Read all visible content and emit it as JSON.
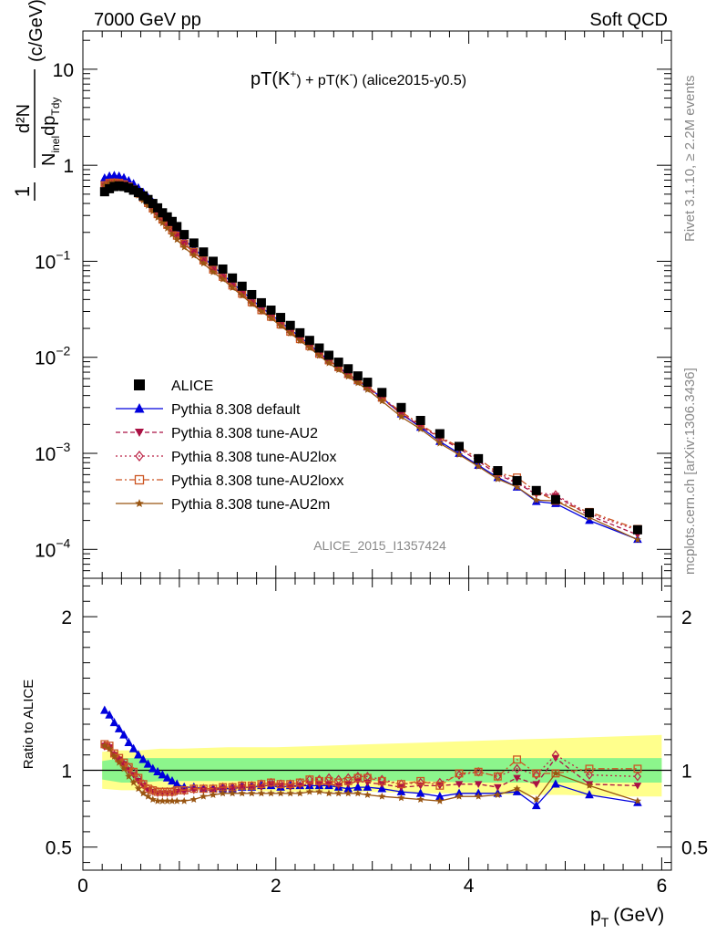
{
  "header": {
    "left": "7000 GeV pp",
    "right": "Soft QCD"
  },
  "side_labels": {
    "rivet": "Rivet 3.1.10, ≥ 2.2M events",
    "mcplots": "mcplots.cern.ch [arXiv:1306.3436]"
  },
  "watermark": "ALICE_2015_I1357424",
  "plot_title": {
    "main": "pT(K",
    "sup1": "+",
    "mid": ") + pT(K",
    "sup2": "-",
    "end": ") (alice2015-y0.5)"
  },
  "chart_data": [
    {
      "type": "scatter",
      "panel": "main",
      "yscale": "log",
      "xlim": [
        0,
        6.1
      ],
      "ylim": [
        5e-05,
        25
      ],
      "ylabel": "1/N_inel d²N/dp_T dy (c/GeV)",
      "ylabel_parts": {
        "one": "1",
        "num": "d²N",
        "den_a": "N",
        "den_sub1": "inel",
        "den_b": "dp",
        "den_sub2": "Tdy",
        "unit": "(c/GeV)"
      },
      "yticks": [
        {
          "v": 10,
          "label": "10"
        },
        {
          "v": 1,
          "label": "1"
        },
        {
          "v": 0.1,
          "label": "10",
          "exp": "−1"
        },
        {
          "v": 0.01,
          "label": "10",
          "exp": "−2"
        },
        {
          "v": 0.001,
          "label": "10",
          "exp": "−3"
        },
        {
          "v": 0.0001,
          "label": "10",
          "exp": "−4"
        }
      ],
      "legend_position": "bottom-left",
      "x": [
        0.225,
        0.275,
        0.325,
        0.375,
        0.425,
        0.475,
        0.525,
        0.575,
        0.625,
        0.675,
        0.725,
        0.775,
        0.825,
        0.875,
        0.925,
        0.975,
        1.05,
        1.15,
        1.25,
        1.35,
        1.45,
        1.55,
        1.65,
        1.75,
        1.85,
        1.95,
        2.05,
        2.15,
        2.25,
        2.35,
        2.45,
        2.55,
        2.65,
        2.75,
        2.85,
        2.95,
        3.1,
        3.3,
        3.5,
        3.7,
        3.9,
        4.1,
        4.3,
        4.5,
        4.7,
        4.9,
        5.25,
        5.75
      ],
      "series": [
        {
          "name": "ALICE",
          "color": "#000000",
          "marker": "square",
          "line": "none",
          "values": [
            0.53,
            0.57,
            0.6,
            0.61,
            0.6,
            0.58,
            0.55,
            0.52,
            0.48,
            0.44,
            0.4,
            0.36,
            0.32,
            0.29,
            0.26,
            0.23,
            0.19,
            0.155,
            0.125,
            0.1,
            0.083,
            0.067,
            0.055,
            0.045,
            0.037,
            0.031,
            0.026,
            0.0215,
            0.018,
            0.015,
            0.0125,
            0.0105,
            0.0089,
            0.0076,
            0.0064,
            0.0055,
            0.0043,
            0.003,
            0.0022,
            0.0016,
            0.00118,
            0.00088,
            0.00066,
            0.00052,
            0.00041,
            0.00033,
            0.00024,
            0.00016
          ]
        },
        {
          "name": "Pythia 8.308 default",
          "color": "#0000dd",
          "marker": "triangle-up",
          "line": "solid",
          "values": [
            0.735,
            0.77,
            0.78,
            0.77,
            0.74,
            0.69,
            0.64,
            0.58,
            0.52,
            0.46,
            0.41,
            0.36,
            0.315,
            0.275,
            0.24,
            0.21,
            0.168,
            0.136,
            0.11,
            0.088,
            0.073,
            0.059,
            0.049,
            0.04,
            0.033,
            0.028,
            0.0233,
            0.0195,
            0.0163,
            0.0136,
            0.0112,
            0.0094,
            0.0079,
            0.0067,
            0.0057,
            0.0049,
            0.0038,
            0.00257,
            0.00187,
            0.00133,
            0.001,
            0.00075,
            0.00056,
            0.000445,
            0.000315,
            0.0003,
            0.0002,
            0.000127
          ]
        },
        {
          "name": "Pythia 8.308 tune-AU2",
          "color": "#aa1144",
          "marker": "triangle-down",
          "line": "dashed",
          "values": [
            0.615,
            0.655,
            0.66,
            0.655,
            0.635,
            0.6,
            0.56,
            0.51,
            0.46,
            0.405,
            0.355,
            0.31,
            0.27,
            0.24,
            0.21,
            0.185,
            0.151,
            0.124,
            0.101,
            0.081,
            0.068,
            0.055,
            0.0455,
            0.037,
            0.0305,
            0.026,
            0.0218,
            0.0183,
            0.0153,
            0.0129,
            0.0107,
            0.0091,
            0.0077,
            0.0066,
            0.0056,
            0.0048,
            0.0037,
            0.0026,
            0.00192,
            0.00145,
            0.00112,
            0.00083,
            0.0006,
            0.00049,
            0.000375,
            0.00036,
            0.000225,
            0.000142
          ]
        },
        {
          "name": "Pythia 8.308 tune-AU2lox",
          "color": "#bb2244",
          "marker": "diamond-open",
          "line": "dotted",
          "values": [
            0.615,
            0.655,
            0.66,
            0.65,
            0.63,
            0.6,
            0.555,
            0.51,
            0.46,
            0.405,
            0.355,
            0.31,
            0.272,
            0.24,
            0.21,
            0.185,
            0.153,
            0.125,
            0.102,
            0.082,
            0.069,
            0.056,
            0.046,
            0.0375,
            0.031,
            0.0265,
            0.022,
            0.0185,
            0.0155,
            0.0131,
            0.0109,
            0.0093,
            0.0079,
            0.0067,
            0.0058,
            0.005,
            0.0038,
            0.0027,
            0.00198,
            0.00148,
            0.00116,
            0.00088,
            0.00063,
            0.0005,
            0.00039,
            0.00037,
            0.000235,
            0.000158
          ]
        },
        {
          "name": "Pythia 8.308 tune-AU2loxx",
          "color": "#cc5522",
          "marker": "square-open",
          "line": "dashdot",
          "values": [
            0.62,
            0.655,
            0.66,
            0.655,
            0.635,
            0.6,
            0.56,
            0.51,
            0.46,
            0.405,
            0.355,
            0.31,
            0.272,
            0.24,
            0.21,
            0.185,
            0.153,
            0.125,
            0.102,
            0.082,
            0.069,
            0.056,
            0.046,
            0.0375,
            0.031,
            0.0265,
            0.022,
            0.0185,
            0.0155,
            0.0131,
            0.0109,
            0.0093,
            0.0079,
            0.0067,
            0.0058,
            0.005,
            0.0038,
            0.0027,
            0.002,
            0.00148,
            0.00117,
            0.00088,
            0.00063,
            0.00056,
            0.0004,
            0.00032,
            0.000245,
            0.000163
          ]
        },
        {
          "name": "Pythia 8.308 tune-AU2m",
          "color": "#995511",
          "marker": "star",
          "line": "solid",
          "values": [
            0.62,
            0.655,
            0.66,
            0.645,
            0.62,
            0.58,
            0.535,
            0.485,
            0.43,
            0.38,
            0.33,
            0.285,
            0.25,
            0.22,
            0.19,
            0.168,
            0.14,
            0.115,
            0.095,
            0.077,
            0.065,
            0.053,
            0.044,
            0.036,
            0.03,
            0.0255,
            0.0212,
            0.0178,
            0.0149,
            0.0125,
            0.0104,
            0.0087,
            0.0074,
            0.0063,
            0.0054,
            0.0046,
            0.0035,
            0.0024,
            0.00179,
            0.00127,
            0.00097,
            0.00073,
            0.00054,
            0.000445,
            0.000325,
            0.00032,
            0.000215,
            0.000126
          ]
        }
      ]
    },
    {
      "type": "scatter",
      "panel": "ratio",
      "yscale": "linear",
      "xlim": [
        0,
        6.1
      ],
      "ylim": [
        0.35,
        2.25
      ],
      "xlabel": "p",
      "xlabel_sub": "T",
      "xlabel_unit": "(GeV)",
      "ylabel": "Ratio to ALICE",
      "xticks": [
        0,
        2,
        4,
        6
      ],
      "yticks": [
        0.5,
        1,
        2
      ],
      "reference_line": 1,
      "bands": {
        "x": [
          0.2,
          0.4,
          0.6,
          0.8,
          1.0,
          1.5,
          2.0,
          2.5,
          3.0,
          3.5,
          4.0,
          4.5,
          5.0,
          5.5,
          6.0
        ],
        "green_lo": [
          0.94,
          0.92,
          0.92,
          0.93,
          0.93,
          0.93,
          0.93,
          0.93,
          0.93,
          0.93,
          0.92,
          0.92,
          0.92,
          0.92,
          0.92
        ],
        "green_hi": [
          1.06,
          1.08,
          1.08,
          1.08,
          1.08,
          1.08,
          1.08,
          1.08,
          1.08,
          1.08,
          1.08,
          1.08,
          1.08,
          1.08,
          1.08
        ],
        "yellow_lo": [
          0.88,
          0.87,
          0.87,
          0.87,
          0.87,
          0.87,
          0.86,
          0.86,
          0.86,
          0.85,
          0.85,
          0.84,
          0.84,
          0.83,
          0.83
        ],
        "yellow_hi": [
          1.12,
          1.13,
          1.13,
          1.14,
          1.14,
          1.15,
          1.15,
          1.16,
          1.17,
          1.18,
          1.19,
          1.2,
          1.21,
          1.22,
          1.23
        ]
      },
      "series": [
        {
          "name": "Pythia 8.308 default",
          "color": "#0000dd",
          "marker": "triangle-up",
          "line": "solid",
          "values": [
            1.39,
            1.36,
            1.31,
            1.27,
            1.23,
            1.18,
            1.14,
            1.1,
            1.07,
            1.04,
            1.01,
            0.99,
            0.97,
            0.95,
            0.93,
            0.91,
            0.89,
            0.89,
            0.88,
            0.88,
            0.88,
            0.88,
            0.89,
            0.89,
            0.9,
            0.9,
            0.89,
            0.9,
            0.9,
            0.9,
            0.9,
            0.9,
            0.89,
            0.88,
            0.89,
            0.89,
            0.88,
            0.86,
            0.85,
            0.83,
            0.85,
            0.85,
            0.85,
            0.86,
            0.77,
            0.91,
            0.84,
            0.79
          ]
        },
        {
          "name": "Pythia 8.308 tune-AU2",
          "color": "#aa1144",
          "marker": "triangle-down",
          "line": "dashed",
          "values": [
            1.16,
            1.15,
            1.1,
            1.07,
            1.04,
            1.0,
            0.97,
            0.93,
            0.9,
            0.87,
            0.86,
            0.85,
            0.85,
            0.85,
            0.85,
            0.86,
            0.86,
            0.87,
            0.87,
            0.87,
            0.88,
            0.88,
            0.89,
            0.89,
            0.89,
            0.91,
            0.9,
            0.89,
            0.9,
            0.91,
            0.91,
            0.91,
            0.9,
            0.91,
            0.93,
            0.92,
            0.91,
            0.89,
            0.9,
            0.9,
            0.91,
            0.91,
            0.89,
            0.95,
            0.91,
            1.08,
            0.91,
            0.9
          ]
        },
        {
          "name": "Pythia 8.308 tune-AU2lox",
          "color": "#bb2244",
          "marker": "diamond-open",
          "line": "dotted",
          "values": [
            1.16,
            1.15,
            1.1,
            1.07,
            1.04,
            1.02,
            0.99,
            0.95,
            0.91,
            0.88,
            0.87,
            0.86,
            0.86,
            0.86,
            0.86,
            0.87,
            0.87,
            0.88,
            0.88,
            0.88,
            0.89,
            0.89,
            0.9,
            0.9,
            0.91,
            0.92,
            0.91,
            0.91,
            0.92,
            0.94,
            0.94,
            0.95,
            0.94,
            0.95,
            0.96,
            0.96,
            0.94,
            0.91,
            0.92,
            0.92,
            0.97,
            0.99,
            0.96,
            1.01,
            0.97,
            1.1,
            0.97,
            0.96
          ]
        },
        {
          "name": "Pythia 8.308 tune-AU2loxx",
          "color": "#cc5522",
          "marker": "square-open",
          "line": "dashdot",
          "values": [
            1.17,
            1.16,
            1.11,
            1.08,
            1.05,
            1.02,
            0.99,
            0.95,
            0.91,
            0.88,
            0.87,
            0.86,
            0.86,
            0.86,
            0.86,
            0.87,
            0.87,
            0.88,
            0.88,
            0.88,
            0.89,
            0.89,
            0.9,
            0.9,
            0.91,
            0.92,
            0.91,
            0.91,
            0.92,
            0.94,
            0.93,
            0.93,
            0.92,
            0.93,
            0.95,
            0.95,
            0.93,
            0.91,
            0.93,
            0.9,
            0.98,
            0.99,
            0.96,
            1.07,
            0.98,
            0.98,
            1.01,
            1.01
          ]
        },
        {
          "name": "Pythia 8.308 tune-AU2m",
          "color": "#995511",
          "marker": "star",
          "line": "solid",
          "values": [
            1.16,
            1.14,
            1.09,
            1.05,
            1.01,
            0.96,
            0.92,
            0.88,
            0.85,
            0.83,
            0.81,
            0.8,
            0.8,
            0.8,
            0.8,
            0.8,
            0.8,
            0.81,
            0.83,
            0.84,
            0.85,
            0.85,
            0.85,
            0.85,
            0.85,
            0.85,
            0.85,
            0.85,
            0.85,
            0.86,
            0.86,
            0.85,
            0.85,
            0.85,
            0.85,
            0.84,
            0.83,
            0.82,
            0.81,
            0.8,
            0.83,
            0.83,
            0.84,
            0.88,
            0.81,
            0.98,
            0.9,
            0.8
          ]
        }
      ]
    }
  ]
}
